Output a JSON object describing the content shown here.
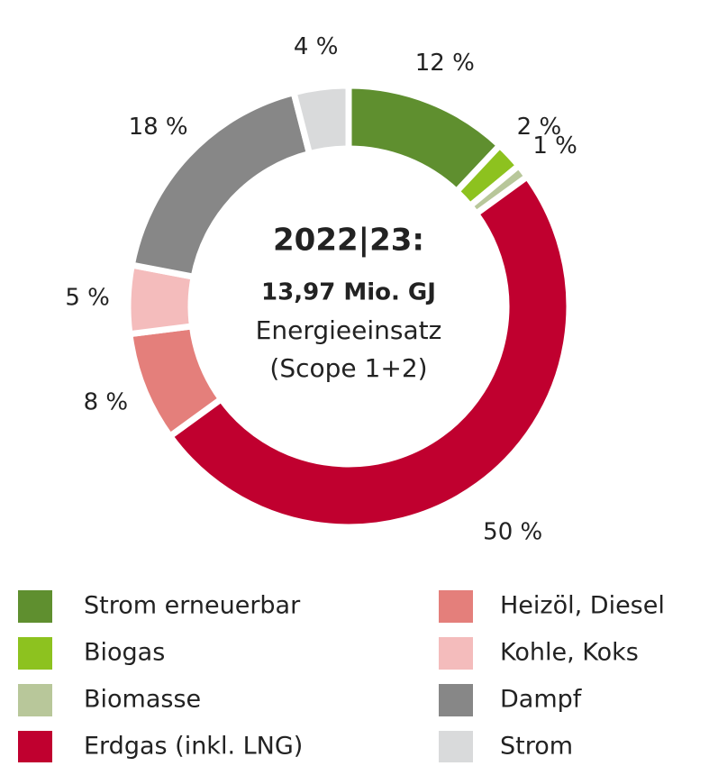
{
  "chart_data": {
    "type": "pie",
    "title": "2022|23:",
    "subtitle": "13,97 Mio. GJ",
    "annotations": [
      "Energieeinsatz",
      "(Scope 1+2)"
    ],
    "categories": [
      "Strom erneuerbar",
      "Biogas",
      "Biomasse",
      "Erdgas (inkl. LNG)",
      "Heizöl, Diesel",
      "Kohle, Koks",
      "Dampf",
      "Strom"
    ],
    "values": [
      12,
      2,
      1,
      50,
      8,
      5,
      18,
      4
    ],
    "value_labels": [
      "12 %",
      "2 %",
      "1 %",
      "50 %",
      "8 %",
      "5 %",
      "18 %",
      "4 %"
    ],
    "colors": [
      "#5f8f2f",
      "#8dc21f",
      "#b8c79a",
      "#c0002f",
      "#e47f7b",
      "#f4bcbc",
      "#878787",
      "#d9dadb"
    ],
    "donut": true
  }
}
